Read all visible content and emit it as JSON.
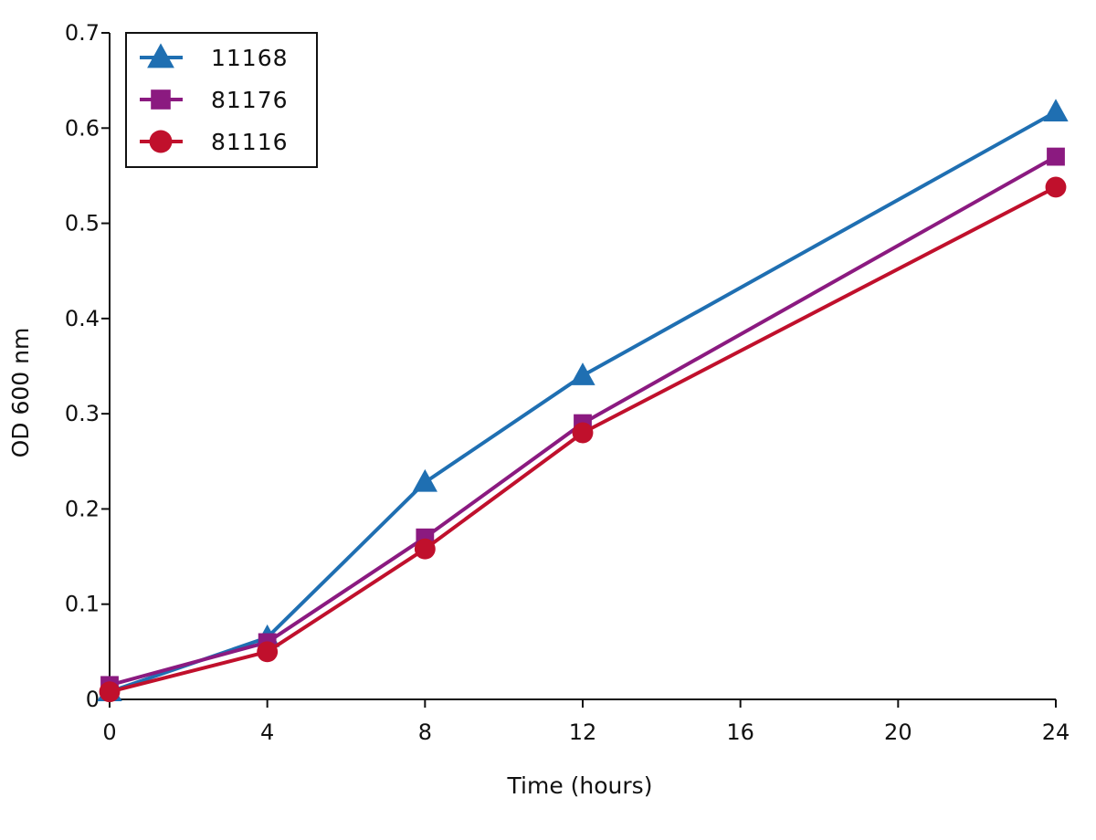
{
  "chart_data": {
    "type": "line",
    "title": "",
    "xlabel": "Time (hours)",
    "ylabel": "OD 600 nm",
    "xlim": [
      0,
      24
    ],
    "ylim": [
      0,
      0.7
    ],
    "x_ticks": [
      0,
      4,
      8,
      12,
      16,
      20,
      24
    ],
    "x_tick_labels": [
      "0",
      "4",
      "8",
      "12",
      "16",
      "20",
      "24"
    ],
    "y_ticks": [
      0,
      0.1,
      0.2,
      0.3,
      0.4,
      0.5,
      0.6,
      0.7
    ],
    "y_tick_labels": [
      "0",
      "0.1",
      "0.2",
      "0.3",
      "0.4",
      "0.5",
      "0.6",
      "0.7"
    ],
    "grid": false,
    "legend_position": "top-left",
    "x": [
      0,
      4,
      8,
      12,
      24
    ],
    "series": [
      {
        "name": "11168",
        "marker": "triangle",
        "color": "#1f6fb2",
        "values": [
          0.008,
          0.065,
          0.228,
          0.34,
          0.617
        ]
      },
      {
        "name": "81176",
        "marker": "square",
        "color": "#8b1a80",
        "values": [
          0.015,
          0.06,
          0.17,
          0.29,
          0.57
        ]
      },
      {
        "name": "81116",
        "marker": "circle",
        "color": "#c0102c",
        "values": [
          0.008,
          0.05,
          0.158,
          0.28,
          0.538
        ]
      }
    ]
  }
}
